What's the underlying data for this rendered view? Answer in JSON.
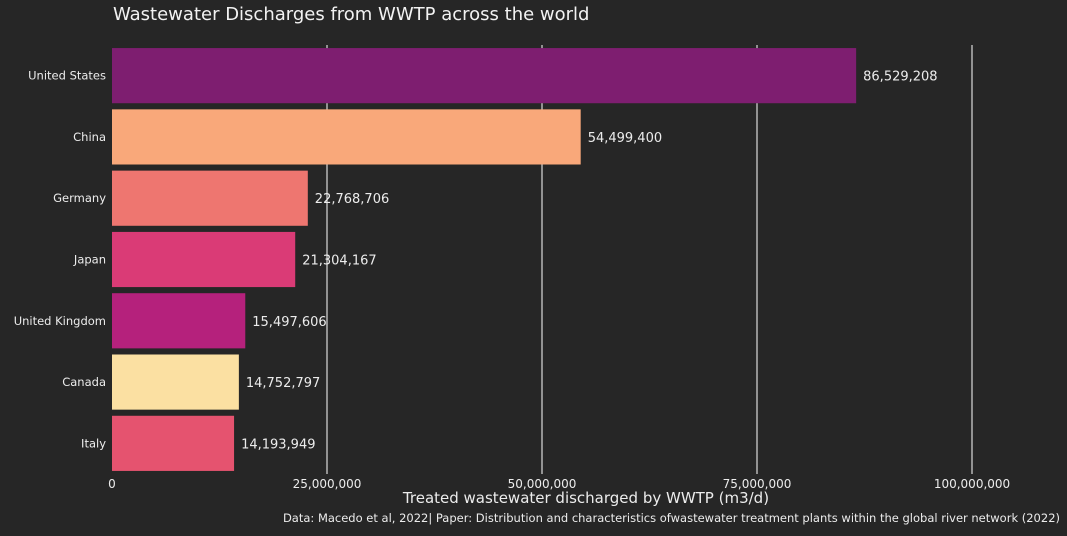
{
  "chart_data": {
    "type": "bar",
    "orientation": "horizontal",
    "title": "Wastewater Discharges from WWTP across the world",
    "xlabel": "Treated wastewater discharged by WWTP (m3/d)",
    "ylabel": "",
    "caption": "Data:  Macedo et al, 2022| Paper: Distribution and characteristics ofwastewater treatment plants within the global river network (2022)",
    "xlim": [
      0,
      100000000
    ],
    "x_ticks": [
      0,
      25000000,
      50000000,
      75000000,
      100000000
    ],
    "x_tick_labels": [
      "0",
      "25,000,000",
      "50,000,000",
      "75,000,000",
      "100,000,000"
    ],
    "grid": "vertical major",
    "categories": [
      "United States",
      "China",
      "Germany",
      "Japan",
      "United Kingdom",
      "Canada",
      "Italy"
    ],
    "values": [
      86529208,
      54499400,
      22768706,
      21304167,
      15497606,
      14752797,
      14193949
    ],
    "value_labels": [
      "86,529,208",
      "54,499,400",
      "22,768,706",
      "21,304,167",
      "15,497,606",
      "14,752,797",
      "14,193,949"
    ],
    "colors": [
      "#7e1e70",
      "#f9a87a",
      "#ee7670",
      "#da3b76",
      "#b5217c",
      "#fbe0a2",
      "#e5536f"
    ],
    "background": "#262626"
  }
}
